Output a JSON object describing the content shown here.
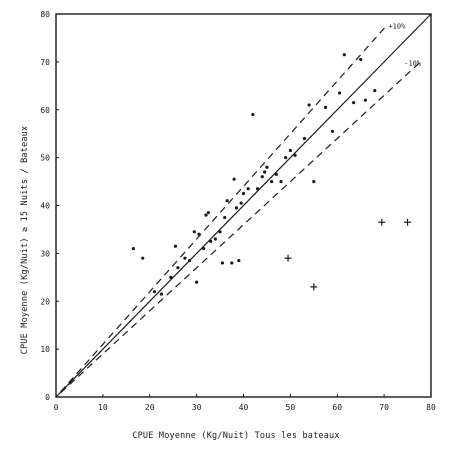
{
  "chart_data": {
    "type": "scatter",
    "xlabel": "CPUE    Moyenne  (Kg/Nuit)  Tous les  bateaux",
    "ylabel": "CPUE    Moyenne  (Kg/Nuit)  ≥ 15 Nuits / Bateaux",
    "xlim": [
      0,
      80
    ],
    "ylim": [
      0,
      80
    ],
    "xticks": [
      0,
      10,
      20,
      30,
      40,
      50,
      60,
      70,
      80
    ],
    "yticks": [
      0,
      10,
      20,
      30,
      40,
      50,
      60,
      70,
      80
    ],
    "grid": false,
    "lines": [
      {
        "style": "solid",
        "slope": 1.0
      },
      {
        "style": "dashed",
        "slope": 1.1,
        "label": "+10%"
      },
      {
        "style": "dashed",
        "slope": 0.9,
        "label": "-10%"
      }
    ],
    "series": [
      {
        "marker": "dot",
        "points": [
          [
            16.5,
            31
          ],
          [
            18.5,
            29
          ],
          [
            21,
            22
          ],
          [
            22.5,
            21.5
          ],
          [
            24.5,
            25
          ],
          [
            25.5,
            31.5
          ],
          [
            26,
            27
          ],
          [
            27.5,
            29
          ],
          [
            28.5,
            28.5
          ],
          [
            29.5,
            34.5
          ],
          [
            30,
            24
          ],
          [
            30.5,
            34
          ],
          [
            31.5,
            31
          ],
          [
            32,
            38
          ],
          [
            32.5,
            38.5
          ],
          [
            33,
            32.5
          ],
          [
            34,
            33
          ],
          [
            35,
            34.5
          ],
          [
            35.5,
            28
          ],
          [
            36,
            37.5
          ],
          [
            36.5,
            41
          ],
          [
            37.5,
            28
          ],
          [
            38,
            45.5
          ],
          [
            38.5,
            39.5
          ],
          [
            39,
            28.5
          ],
          [
            39.5,
            40.5
          ],
          [
            40,
            42.5
          ],
          [
            41,
            43.5
          ],
          [
            42,
            59
          ],
          [
            43,
            43.5
          ],
          [
            44,
            46
          ],
          [
            44.5,
            47
          ],
          [
            45,
            48
          ],
          [
            46,
            45
          ],
          [
            47,
            46.5
          ],
          [
            48,
            45
          ],
          [
            49,
            50
          ],
          [
            50,
            51.5
          ],
          [
            51,
            50.5
          ],
          [
            53,
            54
          ],
          [
            54,
            61
          ],
          [
            55,
            45
          ],
          [
            57.5,
            60.5
          ],
          [
            59,
            55.5
          ],
          [
            60.5,
            63.5
          ],
          [
            61.5,
            71.5
          ],
          [
            63.5,
            61.5
          ],
          [
            65,
            70.5
          ],
          [
            66,
            62
          ],
          [
            68,
            64
          ]
        ]
      },
      {
        "marker": "cross",
        "points": [
          [
            49.5,
            29
          ],
          [
            55,
            23
          ],
          [
            69.5,
            36.5
          ],
          [
            75,
            36.5
          ]
        ]
      }
    ]
  }
}
